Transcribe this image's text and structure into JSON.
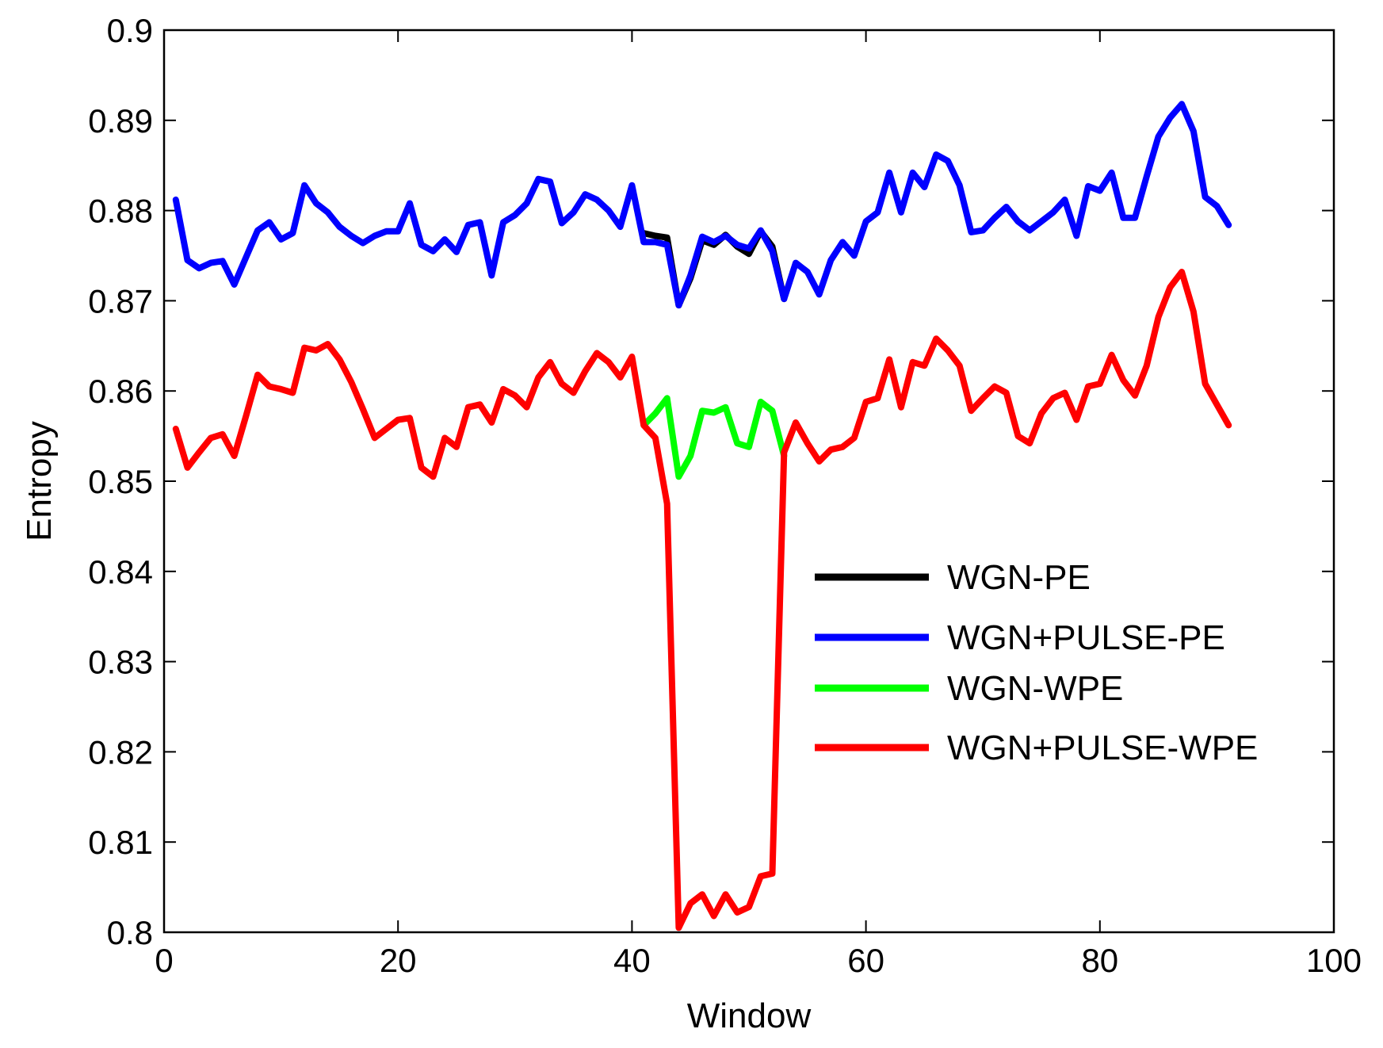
{
  "chart_data": {
    "type": "line",
    "xlabel": "Window",
    "ylabel": "Entropy",
    "xlim": [
      0,
      100
    ],
    "ylim": [
      0.8,
      0.9
    ],
    "xticks": [
      0,
      20,
      40,
      60,
      80,
      100
    ],
    "xtick_labels": [
      "0",
      "20",
      "40",
      "60",
      "80",
      "100"
    ],
    "yticks": [
      0.8,
      0.81,
      0.82,
      0.83,
      0.84,
      0.85,
      0.86,
      0.87,
      0.88,
      0.89,
      0.9
    ],
    "ytick_labels": [
      "0.8",
      "0.81",
      "0.82",
      "0.83",
      "0.84",
      "0.85",
      "0.86",
      "0.87",
      "0.88",
      "0.89",
      "0.9"
    ],
    "grid": false,
    "legend_position": "center-right",
    "series": [
      {
        "name": "WGN-PE",
        "color": "#000000",
        "x": [
          41,
          42,
          43,
          44,
          45,
          46,
          47,
          48,
          49,
          50,
          51,
          52,
          53
        ],
        "y": [
          0.8775,
          0.8772,
          0.877,
          0.8695,
          0.8725,
          0.8767,
          0.8762,
          0.8773,
          0.876,
          0.8752,
          0.8777,
          0.876,
          0.8702
        ]
      },
      {
        "name": "WGN+PULSE-PE",
        "color": "#0000ff",
        "x": [
          1,
          2,
          3,
          4,
          5,
          6,
          7,
          8,
          9,
          10,
          11,
          12,
          13,
          14,
          15,
          16,
          17,
          18,
          19,
          20,
          21,
          22,
          23,
          24,
          25,
          26,
          27,
          28,
          29,
          30,
          31,
          32,
          33,
          34,
          35,
          36,
          37,
          38,
          39,
          40,
          41,
          42,
          43,
          44,
          45,
          46,
          47,
          48,
          49,
          50,
          51,
          52,
          53,
          54,
          55,
          56,
          57,
          58,
          59,
          60,
          61,
          62,
          63,
          64,
          65,
          66,
          67,
          68,
          69,
          70,
          71,
          72,
          73,
          74,
          75,
          76,
          77,
          78,
          79,
          80,
          81,
          82,
          83,
          84,
          85,
          86,
          87,
          88,
          89,
          90,
          91
        ],
        "y": [
          0.8812,
          0.8745,
          0.8736,
          0.8742,
          0.8744,
          0.8718,
          0.8748,
          0.8778,
          0.8787,
          0.8768,
          0.8775,
          0.8828,
          0.8808,
          0.8798,
          0.8782,
          0.8772,
          0.8764,
          0.8772,
          0.8777,
          0.8777,
          0.8808,
          0.8762,
          0.8755,
          0.8768,
          0.8754,
          0.8784,
          0.8787,
          0.8728,
          0.8787,
          0.8795,
          0.8808,
          0.8835,
          0.8832,
          0.8786,
          0.8798,
          0.8818,
          0.8812,
          0.88,
          0.8782,
          0.8828,
          0.8765,
          0.8765,
          0.8762,
          0.8695,
          0.8728,
          0.8771,
          0.8765,
          0.8772,
          0.8762,
          0.8758,
          0.8778,
          0.8755,
          0.8702,
          0.8742,
          0.8732,
          0.8707,
          0.8745,
          0.8765,
          0.875,
          0.8788,
          0.8798,
          0.8842,
          0.8798,
          0.8842,
          0.8826,
          0.8862,
          0.8855,
          0.8828,
          0.8776,
          0.8778,
          0.8792,
          0.8804,
          0.8788,
          0.8778,
          0.8788,
          0.8798,
          0.8812,
          0.8772,
          0.8827,
          0.8822,
          0.8842,
          0.8792,
          0.8792,
          0.8838,
          0.8882,
          0.8903,
          0.8918,
          0.8888,
          0.8815,
          0.8805,
          0.8784
        ]
      },
      {
        "name": "WGN-WPE",
        "color": "#00ff00",
        "x": [
          41,
          42,
          43,
          44,
          45,
          46,
          47,
          48,
          49,
          50,
          51,
          52,
          53
        ],
        "y": [
          0.8562,
          0.8575,
          0.8592,
          0.8505,
          0.8528,
          0.8578,
          0.8576,
          0.8582,
          0.8542,
          0.8538,
          0.8588,
          0.8578,
          0.8528
        ]
      },
      {
        "name": "WGN+PULSE-WPE",
        "color": "#ff0000",
        "x": [
          1,
          2,
          3,
          4,
          5,
          6,
          7,
          8,
          9,
          10,
          11,
          12,
          13,
          14,
          15,
          16,
          17,
          18,
          19,
          20,
          21,
          22,
          23,
          24,
          25,
          26,
          27,
          28,
          29,
          30,
          31,
          32,
          33,
          34,
          35,
          36,
          37,
          38,
          39,
          40,
          41,
          42,
          43,
          44,
          45,
          46,
          47,
          48,
          49,
          50,
          51,
          52,
          53,
          54,
          55,
          56,
          57,
          58,
          59,
          60,
          61,
          62,
          63,
          64,
          65,
          66,
          67,
          68,
          69,
          70,
          71,
          72,
          73,
          74,
          75,
          76,
          77,
          78,
          79,
          80,
          81,
          82,
          83,
          84,
          85,
          86,
          87,
          88,
          89,
          90,
          91
        ],
        "y": [
          0.8558,
          0.8515,
          0.8532,
          0.8548,
          0.8552,
          0.8528,
          0.8572,
          0.8618,
          0.8605,
          0.8602,
          0.8598,
          0.8648,
          0.8645,
          0.8652,
          0.8635,
          0.861,
          0.858,
          0.8548,
          0.8558,
          0.8568,
          0.857,
          0.8515,
          0.8505,
          0.8548,
          0.8538,
          0.8582,
          0.8585,
          0.8565,
          0.8602,
          0.8595,
          0.8582,
          0.8615,
          0.8632,
          0.8608,
          0.8598,
          0.8622,
          0.8642,
          0.8632,
          0.8615,
          0.8638,
          0.8562,
          0.8548,
          0.8475,
          0.8005,
          0.8032,
          0.8042,
          0.8018,
          0.8042,
          0.8022,
          0.8028,
          0.8062,
          0.8065,
          0.8532,
          0.8565,
          0.8542,
          0.8522,
          0.8535,
          0.8538,
          0.8548,
          0.8588,
          0.8592,
          0.8635,
          0.8582,
          0.8632,
          0.8628,
          0.8658,
          0.8645,
          0.8628,
          0.8578,
          0.8592,
          0.8605,
          0.8598,
          0.855,
          0.8542,
          0.8575,
          0.8592,
          0.8598,
          0.8568,
          0.8605,
          0.8608,
          0.864,
          0.8612,
          0.8595,
          0.8628,
          0.8682,
          0.8715,
          0.8732,
          0.8688,
          0.8608,
          0.8585,
          0.8562
        ]
      }
    ]
  }
}
